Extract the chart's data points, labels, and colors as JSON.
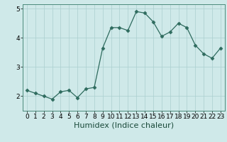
{
  "x": [
    0,
    1,
    2,
    3,
    4,
    5,
    6,
    7,
    8,
    9,
    10,
    11,
    12,
    13,
    14,
    15,
    16,
    17,
    18,
    19,
    20,
    21,
    22,
    23
  ],
  "y": [
    2.2,
    2.1,
    2.0,
    1.9,
    2.15,
    2.2,
    1.95,
    2.25,
    2.3,
    3.65,
    4.35,
    4.35,
    4.25,
    4.9,
    4.85,
    4.55,
    4.05,
    4.2,
    4.5,
    4.35,
    3.75,
    3.45,
    3.3,
    3.65
  ],
  "xlabel": "Humidex (Indice chaleur)",
  "ylabel": "",
  "xlim": [
    -0.5,
    23.5
  ],
  "ylim": [
    1.5,
    5.15
  ],
  "yticks": [
    2,
    3,
    4,
    5
  ],
  "xticks": [
    0,
    1,
    2,
    3,
    4,
    5,
    6,
    7,
    8,
    9,
    10,
    11,
    12,
    13,
    14,
    15,
    16,
    17,
    18,
    19,
    20,
    21,
    22,
    23
  ],
  "line_color": "#2e6b5e",
  "marker": "D",
  "marker_size": 2.5,
  "bg_color": "#cfe9e9",
  "grid_color": "#aacfcf",
  "tick_label_fontsize": 6.5,
  "xlabel_fontsize": 8,
  "spine_color": "#4a8a7a"
}
